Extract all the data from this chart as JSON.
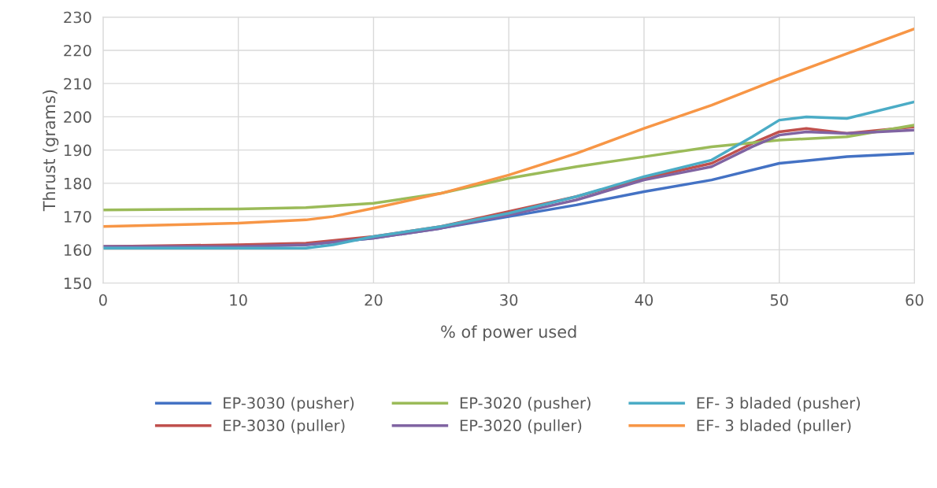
{
  "chart_data": {
    "type": "line",
    "xlabel": "% of power used",
    "ylabel": "Thrust (grams)",
    "xlim": [
      0,
      60
    ],
    "xticks": [
      0,
      10,
      20,
      30,
      40,
      50,
      60
    ],
    "ylim": [
      150,
      230
    ],
    "yticks": [
      150,
      160,
      170,
      180,
      190,
      200,
      210,
      220,
      230
    ],
    "grid": true,
    "legend": "bottom",
    "marker": "none",
    "line_style": "solid",
    "series": [
      {
        "name": "EP-3030 (pusher)",
        "color": "#4472c4",
        "x": [
          0,
          10,
          15,
          20,
          25,
          30,
          35,
          40,
          45,
          50,
          55,
          60
        ],
        "values": [
          161,
          161,
          161.5,
          163.5,
          166.5,
          170,
          173.5,
          177.5,
          181,
          186,
          188,
          189
        ]
      },
      {
        "name": "EP-3030 (puller)",
        "color": "#c0504d",
        "x": [
          0,
          10,
          15,
          20,
          25,
          30,
          35,
          40,
          45,
          48,
          50,
          52,
          55,
          60
        ],
        "values": [
          161,
          161.5,
          162,
          164,
          167,
          171.5,
          176,
          181.5,
          186,
          192,
          195.5,
          196.5,
          195,
          197
        ]
      },
      {
        "name": "EP-3020 (pusher)",
        "color": "#9bbb59",
        "x": [
          0,
          10,
          15,
          20,
          25,
          30,
          35,
          40,
          45,
          50,
          55,
          60
        ],
        "values": [
          172,
          172.3,
          172.7,
          174,
          177,
          181.5,
          185,
          188,
          191,
          193,
          194,
          197.5
        ]
      },
      {
        "name": "EP-3020 (puller)",
        "color": "#8064a2",
        "x": [
          0,
          10,
          15,
          20,
          25,
          30,
          35,
          40,
          45,
          48,
          50,
          52,
          55,
          60
        ],
        "values": [
          161,
          161,
          161.5,
          163.5,
          166.5,
          170.5,
          175,
          181,
          185,
          191,
          194.5,
          195.5,
          195,
          196
        ]
      },
      {
        "name": "EF- 3 bladed (pusher)",
        "color": "#4bacc6",
        "x": [
          0,
          10,
          15,
          17,
          20,
          25,
          30,
          35,
          40,
          45,
          48,
          50,
          52,
          55,
          60
        ],
        "values": [
          160.5,
          160.5,
          160.5,
          161.5,
          164,
          167,
          171,
          176,
          182,
          187,
          194,
          199,
          200,
          199.5,
          204.5
        ]
      },
      {
        "name": "EF- 3 bladed (puller)",
        "color": "#f79646",
        "x": [
          0,
          10,
          15,
          17,
          20,
          25,
          30,
          35,
          40,
          45,
          50,
          55,
          60
        ],
        "values": [
          167,
          168,
          169,
          170,
          172.5,
          177,
          182.5,
          189,
          196.5,
          203.5,
          211.5,
          219,
          226.5
        ]
      }
    ]
  }
}
